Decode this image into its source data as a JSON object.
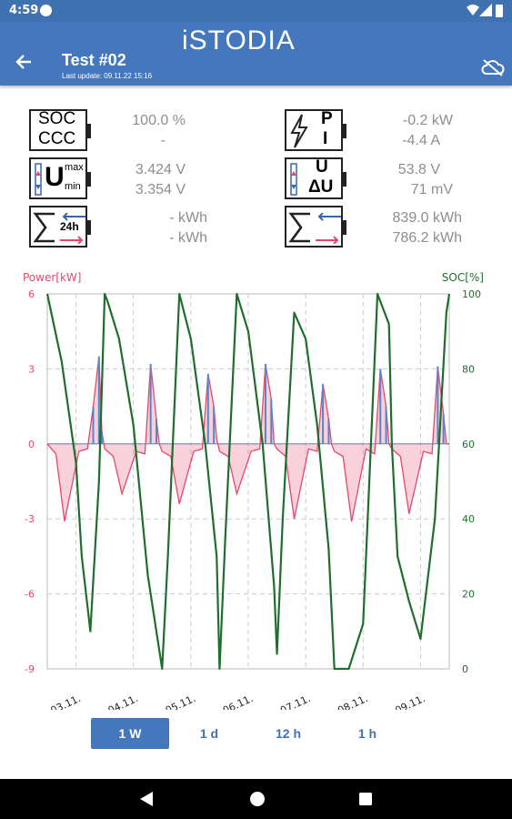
{
  "status": {
    "time": "4:59"
  },
  "app": {
    "logo": "iSTODIA",
    "title": "Test #02",
    "subtitle": "Last update: 09.11.22 15:16",
    "accent": "#4477bb"
  },
  "stats": {
    "soc_label": "SOC",
    "ccc_label": "CCC",
    "soc_value": "100.0 %",
    "ccc_value": "-",
    "p_label": "P",
    "i_label": "I",
    "p_value": "-0.2 kW",
    "i_value": "-4.4 A",
    "umax_label": "U",
    "umax_sup": "max",
    "umin_sub": "min",
    "umax_value": "3.424 V",
    "umin_value": "3.354 V",
    "u_label": "U",
    "du_label": "ΔU",
    "u_value": "53.8 V",
    "du_value": "71 mV",
    "e24_label": "24h",
    "e24_in": "-  kWh",
    "e24_out": "-  kWh",
    "etot_in": "839.0 kWh",
    "etot_out": "786.2 kWh"
  },
  "chart_data": {
    "type": "line",
    "left_axis_label": "Power[kW]",
    "right_axis_label": "SOC[%]",
    "left_ylim": [
      -9,
      6
    ],
    "right_ylim": [
      0,
      100
    ],
    "left_ticks": [
      "6",
      "3",
      "0",
      "-3",
      "-6",
      "-9"
    ],
    "right_ticks": [
      "100",
      "80",
      "60",
      "40",
      "20",
      "0"
    ],
    "x_ticks": [
      "03.11.",
      "04.11.",
      "05.11.",
      "06.11.",
      "07.11.",
      "08.11.",
      "09.11."
    ],
    "grid": true,
    "colors": {
      "power": "#e8476b",
      "power_pos": "#5a86c8",
      "soc": "#1f6e2e"
    },
    "soc_series": {
      "x": [
        0,
        0.25,
        0.5,
        0.6,
        0.75,
        0.9,
        1.0,
        1.05,
        1.25,
        1.5,
        1.75,
        1.95,
        2.0,
        2.1,
        2.3,
        2.5,
        2.75,
        2.95,
        3.0,
        3.1,
        3.3,
        3.5,
        3.75,
        3.95,
        4.0,
        4.1,
        4.3,
        4.5,
        4.7,
        4.9,
        5.0,
        5.25,
        5.5,
        5.75,
        5.95,
        6.0,
        6.1,
        6.3,
        6.5,
        6.75,
        6.95,
        7.0
      ],
      "y": [
        100,
        82,
        55,
        30,
        10,
        50,
        100,
        98,
        88,
        65,
        25,
        5,
        0,
        30,
        100,
        88,
        60,
        30,
        0,
        35,
        100,
        90,
        60,
        22,
        4,
        40,
        95,
        88,
        65,
        32,
        0,
        0,
        12,
        100,
        92,
        60,
        30,
        18,
        8,
        40,
        95,
        100
      ]
    },
    "power_series": {
      "x": [
        0,
        0.15,
        0.3,
        0.55,
        0.7,
        0.8,
        0.9,
        0.95,
        1.0,
        1.15,
        1.3,
        1.55,
        1.7,
        1.8,
        1.9,
        1.95,
        2.0,
        2.15,
        2.3,
        2.55,
        2.7,
        2.8,
        2.9,
        2.95,
        3.0,
        3.15,
        3.3,
        3.55,
        3.7,
        3.8,
        3.9,
        3.95,
        4.0,
        4.15,
        4.3,
        4.55,
        4.7,
        4.8,
        4.9,
        4.95,
        5.0,
        5.15,
        5.3,
        5.55,
        5.7,
        5.8,
        5.9,
        5.95,
        6.0,
        6.15,
        6.3,
        6.55,
        6.7,
        6.8,
        6.9,
        6.95,
        7.0
      ],
      "y": [
        0,
        -0.4,
        -3.1,
        -0.3,
        -0.2,
        1.5,
        3.5,
        0.5,
        -0.2,
        -0.5,
        -2.0,
        -0.3,
        -0.4,
        3.2,
        1.0,
        0,
        -0.3,
        -0.5,
        -2.4,
        -0.3,
        -0.2,
        2.8,
        1.5,
        0.2,
        -0.3,
        -0.5,
        -2.0,
        -0.3,
        -0.2,
        3.2,
        1.8,
        0,
        -0.2,
        -0.5,
        -3.0,
        -0.2,
        -0.3,
        2.4,
        1.0,
        0,
        -0.3,
        -0.5,
        -3.1,
        -0.2,
        -0.4,
        3.0,
        1.5,
        0,
        -0.2,
        -0.5,
        -2.8,
        -0.3,
        -0.4,
        3.1,
        1.2,
        0,
        0
      ]
    }
  },
  "range": {
    "options": [
      "1 W",
      "1 d",
      "12 h",
      "1 h"
    ],
    "selected": "1 W"
  }
}
